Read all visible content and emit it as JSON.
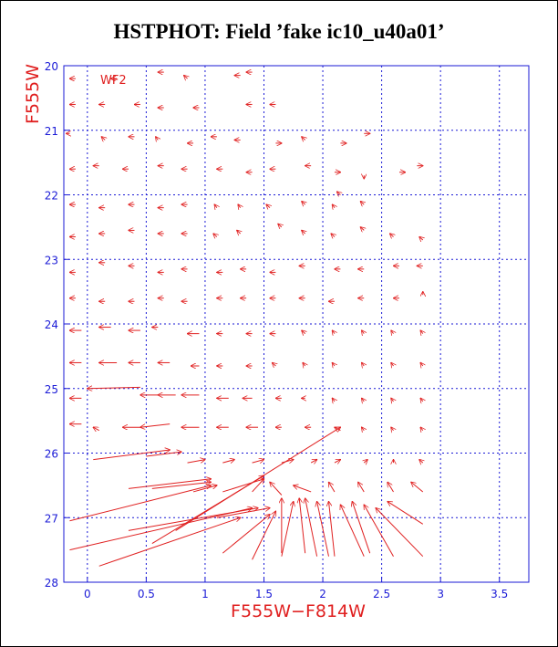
{
  "chart_data": {
    "type": "vector-field",
    "title": "HSTPHOT: Field ’fake ic10_u40a01’",
    "panel_label": "WF2",
    "xlabel": "F555W−F814W",
    "ylabel": "F555W",
    "xlim": [
      -0.2,
      3.75
    ],
    "ylim": [
      28,
      20
    ],
    "x_ticks": [
      0,
      0.5,
      1,
      1.5,
      2,
      2.5,
      3,
      3.5
    ],
    "x_tick_labels": [
      "0",
      "0.5",
      "1",
      "1.5",
      "2",
      "2.5",
      "3",
      "3.5"
    ],
    "y_ticks": [
      20,
      21,
      22,
      23,
      24,
      25,
      26,
      27,
      28
    ],
    "y_tick_labels": [
      "20",
      "21",
      "22",
      "23",
      "24",
      "25",
      "26",
      "27",
      "28"
    ],
    "grid": true,
    "arrow_color": "#e02020",
    "grid_color": "#1a1ad6",
    "vectors": [
      {
        "x0": -0.1,
        "y0": 20.2,
        "x1": -0.15,
        "y1": 20.2
      },
      {
        "x0": 0.25,
        "y0": 20.2,
        "x1": 0.2,
        "y1": 20.2
      },
      {
        "x0": 0.65,
        "y0": 20.1,
        "x1": 0.6,
        "y1": 20.1
      },
      {
        "x0": 0.85,
        "y0": 20.2,
        "x1": 0.82,
        "y1": 20.15
      },
      {
        "x0": 1.3,
        "y0": 20.15,
        "x1": 1.25,
        "y1": 20.15
      },
      {
        "x0": 1.4,
        "y0": 20.1,
        "x1": 1.35,
        "y1": 20.1
      },
      {
        "x0": -0.1,
        "y0": 20.6,
        "x1": -0.15,
        "y1": 20.6
      },
      {
        "x0": 0.15,
        "y0": 20.6,
        "x1": 0.1,
        "y1": 20.6
      },
      {
        "x0": 0.45,
        "y0": 20.6,
        "x1": 0.4,
        "y1": 20.6
      },
      {
        "x0": 0.65,
        "y0": 20.65,
        "x1": 0.6,
        "y1": 20.65
      },
      {
        "x0": 0.95,
        "y0": 20.65,
        "x1": 0.9,
        "y1": 20.65
      },
      {
        "x0": 1.4,
        "y0": 20.6,
        "x1": 1.35,
        "y1": 20.6
      },
      {
        "x0": 1.6,
        "y0": 20.6,
        "x1": 1.55,
        "y1": 20.6
      },
      {
        "x0": -0.15,
        "y0": 21.05,
        "x1": -0.18,
        "y1": 21.05
      },
      {
        "x0": 0.15,
        "y0": 21.15,
        "x1": 0.12,
        "y1": 21.1
      },
      {
        "x0": 0.4,
        "y0": 21.1,
        "x1": 0.35,
        "y1": 21.1
      },
      {
        "x0": 0.6,
        "y0": 21.15,
        "x1": 0.58,
        "y1": 21.1
      },
      {
        "x0": 0.9,
        "y0": 21.2,
        "x1": 0.85,
        "y1": 21.2
      },
      {
        "x0": 1.1,
        "y0": 21.1,
        "x1": 1.05,
        "y1": 21.1
      },
      {
        "x0": 1.3,
        "y0": 21.15,
        "x1": 1.25,
        "y1": 21.15
      },
      {
        "x0": 1.6,
        "y0": 21.2,
        "x1": 1.65,
        "y1": 21.2
      },
      {
        "x0": 1.85,
        "y0": 21.15,
        "x1": 1.82,
        "y1": 21.1
      },
      {
        "x0": 2.15,
        "y0": 21.2,
        "x1": 2.2,
        "y1": 21.2
      },
      {
        "x0": 2.35,
        "y0": 21.05,
        "x1": 2.4,
        "y1": 21.05
      },
      {
        "x0": -0.1,
        "y0": 21.6,
        "x1": -0.15,
        "y1": 21.6
      },
      {
        "x0": 0.1,
        "y0": 21.55,
        "x1": 0.05,
        "y1": 21.55
      },
      {
        "x0": 0.35,
        "y0": 21.6,
        "x1": 0.3,
        "y1": 21.6
      },
      {
        "x0": 0.65,
        "y0": 21.55,
        "x1": 0.6,
        "y1": 21.55
      },
      {
        "x0": 0.85,
        "y0": 21.6,
        "x1": 0.8,
        "y1": 21.6
      },
      {
        "x0": 1.15,
        "y0": 21.6,
        "x1": 1.1,
        "y1": 21.6
      },
      {
        "x0": 1.4,
        "y0": 21.65,
        "x1": 1.35,
        "y1": 21.65
      },
      {
        "x0": 1.6,
        "y0": 21.6,
        "x1": 1.55,
        "y1": 21.6
      },
      {
        "x0": 1.9,
        "y0": 21.55,
        "x1": 1.85,
        "y1": 21.55
      },
      {
        "x0": 2.1,
        "y0": 21.65,
        "x1": 2.15,
        "y1": 21.65
      },
      {
        "x0": 2.35,
        "y0": 21.7,
        "x1": 2.35,
        "y1": 21.75
      },
      {
        "x0": 2.65,
        "y0": 21.65,
        "x1": 2.7,
        "y1": 21.65
      },
      {
        "x0": 2.8,
        "y0": 21.55,
        "x1": 2.85,
        "y1": 21.55
      },
      {
        "x0": -0.1,
        "y0": 22.15,
        "x1": -0.15,
        "y1": 22.15
      },
      {
        "x0": 0.15,
        "y0": 22.2,
        "x1": 0.1,
        "y1": 22.2
      },
      {
        "x0": 0.4,
        "y0": 22.15,
        "x1": 0.35,
        "y1": 22.15
      },
      {
        "x0": 0.65,
        "y0": 22.2,
        "x1": 0.6,
        "y1": 22.2
      },
      {
        "x0": 0.85,
        "y0": 22.15,
        "x1": 0.8,
        "y1": 22.15
      },
      {
        "x0": 1.1,
        "y0": 22.2,
        "x1": 1.08,
        "y1": 22.15
      },
      {
        "x0": 1.3,
        "y0": 22.2,
        "x1": 1.28,
        "y1": 22.15
      },
      {
        "x0": 1.55,
        "y0": 22.2,
        "x1": 1.52,
        "y1": 22.15
      },
      {
        "x0": 1.85,
        "y0": 22.15,
        "x1": 1.82,
        "y1": 22.1
      },
      {
        "x0": 2.1,
        "y0": 22.2,
        "x1": 2.08,
        "y1": 22.15
      },
      {
        "x0": 2.35,
        "y0": 22.15,
        "x1": 2.32,
        "y1": 22.1
      },
      {
        "x0": 2.15,
        "y0": 22.0,
        "x1": 2.12,
        "y1": 21.95
      },
      {
        "x0": -0.1,
        "y0": 22.65,
        "x1": -0.15,
        "y1": 22.65
      },
      {
        "x0": 0.15,
        "y0": 22.6,
        "x1": 0.1,
        "y1": 22.6
      },
      {
        "x0": 0.4,
        "y0": 22.55,
        "x1": 0.35,
        "y1": 22.55
      },
      {
        "x0": 0.65,
        "y0": 22.6,
        "x1": 0.6,
        "y1": 22.6
      },
      {
        "x0": 0.85,
        "y0": 22.6,
        "x1": 0.8,
        "y1": 22.6
      },
      {
        "x0": 1.1,
        "y0": 22.65,
        "x1": 1.07,
        "y1": 22.6
      },
      {
        "x0": 1.3,
        "y0": 22.6,
        "x1": 1.27,
        "y1": 22.55
      },
      {
        "x0": 1.65,
        "y0": 22.5,
        "x1": 1.62,
        "y1": 22.45
      },
      {
        "x0": 1.85,
        "y0": 22.6,
        "x1": 1.82,
        "y1": 22.55
      },
      {
        "x0": 2.1,
        "y0": 22.65,
        "x1": 2.07,
        "y1": 22.6
      },
      {
        "x0": 2.35,
        "y0": 22.55,
        "x1": 2.32,
        "y1": 22.5
      },
      {
        "x0": 2.6,
        "y0": 22.65,
        "x1": 2.57,
        "y1": 22.6
      },
      {
        "x0": 2.85,
        "y0": 22.7,
        "x1": 2.82,
        "y1": 22.65
      },
      {
        "x0": -0.1,
        "y0": 23.2,
        "x1": -0.15,
        "y1": 23.2
      },
      {
        "x0": 0.15,
        "y0": 23.05,
        "x1": 0.1,
        "y1": 23.05
      },
      {
        "x0": 0.4,
        "y0": 23.1,
        "x1": 0.35,
        "y1": 23.1
      },
      {
        "x0": 0.65,
        "y0": 23.2,
        "x1": 0.6,
        "y1": 23.2
      },
      {
        "x0": 0.85,
        "y0": 23.15,
        "x1": 0.8,
        "y1": 23.15
      },
      {
        "x0": 1.15,
        "y0": 23.2,
        "x1": 1.1,
        "y1": 23.2
      },
      {
        "x0": 1.35,
        "y0": 23.15,
        "x1": 1.3,
        "y1": 23.15
      },
      {
        "x0": 1.6,
        "y0": 23.2,
        "x1": 1.55,
        "y1": 23.2
      },
      {
        "x0": 1.85,
        "y0": 23.1,
        "x1": 1.8,
        "y1": 23.1
      },
      {
        "x0": 2.15,
        "y0": 23.15,
        "x1": 2.1,
        "y1": 23.15
      },
      {
        "x0": 2.35,
        "y0": 23.15,
        "x1": 2.3,
        "y1": 23.15
      },
      {
        "x0": 2.65,
        "y0": 23.1,
        "x1": 2.6,
        "y1": 23.1
      },
      {
        "x0": 2.85,
        "y0": 23.1,
        "x1": 2.8,
        "y1": 23.1
      },
      {
        "x0": -0.1,
        "y0": 23.6,
        "x1": -0.15,
        "y1": 23.6
      },
      {
        "x0": 0.15,
        "y0": 23.65,
        "x1": 0.1,
        "y1": 23.65
      },
      {
        "x0": 0.4,
        "y0": 23.65,
        "x1": 0.35,
        "y1": 23.65
      },
      {
        "x0": 0.65,
        "y0": 23.6,
        "x1": 0.6,
        "y1": 23.6
      },
      {
        "x0": 0.85,
        "y0": 23.65,
        "x1": 0.8,
        "y1": 23.65
      },
      {
        "x0": 1.15,
        "y0": 23.6,
        "x1": 1.1,
        "y1": 23.6
      },
      {
        "x0": 1.35,
        "y0": 23.6,
        "x1": 1.3,
        "y1": 23.6
      },
      {
        "x0": 1.6,
        "y0": 23.6,
        "x1": 1.55,
        "y1": 23.6
      },
      {
        "x0": 1.85,
        "y0": 23.6,
        "x1": 1.8,
        "y1": 23.6
      },
      {
        "x0": 2.1,
        "y0": 23.65,
        "x1": 2.05,
        "y1": 23.65
      },
      {
        "x0": 2.35,
        "y0": 23.6,
        "x1": 2.3,
        "y1": 23.6
      },
      {
        "x0": 2.65,
        "y0": 23.6,
        "x1": 2.6,
        "y1": 23.6
      },
      {
        "x0": 2.85,
        "y0": 23.55,
        "x1": 2.85,
        "y1": 23.5
      },
      {
        "x0": -0.05,
        "y0": 24.1,
        "x1": -0.15,
        "y1": 24.1
      },
      {
        "x0": 0.2,
        "y0": 24.05,
        "x1": 0.1,
        "y1": 24.05
      },
      {
        "x0": 0.45,
        "y0": 24.1,
        "x1": 0.35,
        "y1": 24.1
      },
      {
        "x0": 0.6,
        "y0": 24.05,
        "x1": 0.55,
        "y1": 24.05
      },
      {
        "x0": 0.95,
        "y0": 24.15,
        "x1": 0.85,
        "y1": 24.15
      },
      {
        "x0": 1.15,
        "y0": 24.15,
        "x1": 1.1,
        "y1": 24.15
      },
      {
        "x0": 1.4,
        "y0": 24.15,
        "x1": 1.35,
        "y1": 24.15
      },
      {
        "x0": 1.6,
        "y0": 24.15,
        "x1": 1.55,
        "y1": 24.15
      },
      {
        "x0": 1.85,
        "y0": 24.15,
        "x1": 1.82,
        "y1": 24.1
      },
      {
        "x0": 2.1,
        "y0": 24.15,
        "x1": 2.08,
        "y1": 24.1
      },
      {
        "x0": 2.35,
        "y0": 24.15,
        "x1": 2.33,
        "y1": 24.1
      },
      {
        "x0": 2.6,
        "y0": 24.15,
        "x1": 2.58,
        "y1": 24.1
      },
      {
        "x0": 2.85,
        "y0": 24.15,
        "x1": 2.83,
        "y1": 24.1
      },
      {
        "x0": -0.05,
        "y0": 24.6,
        "x1": -0.15,
        "y1": 24.6
      },
      {
        "x0": 0.25,
        "y0": 24.6,
        "x1": 0.1,
        "y1": 24.6
      },
      {
        "x0": 0.45,
        "y0": 24.6,
        "x1": 0.35,
        "y1": 24.6
      },
      {
        "x0": 0.7,
        "y0": 24.6,
        "x1": 0.6,
        "y1": 24.6
      },
      {
        "x0": 0.95,
        "y0": 24.65,
        "x1": 0.88,
        "y1": 24.65
      },
      {
        "x0": 1.15,
        "y0": 24.65,
        "x1": 1.1,
        "y1": 24.65
      },
      {
        "x0": 1.4,
        "y0": 24.65,
        "x1": 1.35,
        "y1": 24.65
      },
      {
        "x0": 1.6,
        "y0": 24.65,
        "x1": 1.57,
        "y1": 24.6
      },
      {
        "x0": 1.85,
        "y0": 24.65,
        "x1": 1.83,
        "y1": 24.6
      },
      {
        "x0": 2.1,
        "y0": 24.65,
        "x1": 2.08,
        "y1": 24.6
      },
      {
        "x0": 2.35,
        "y0": 24.65,
        "x1": 2.33,
        "y1": 24.6
      },
      {
        "x0": 2.6,
        "y0": 24.65,
        "x1": 2.58,
        "y1": 24.6
      },
      {
        "x0": 2.85,
        "y0": 24.65,
        "x1": 2.83,
        "y1": 24.6
      },
      {
        "x0": -0.05,
        "y0": 25.15,
        "x1": -0.15,
        "y1": 25.15
      },
      {
        "x0": 0.45,
        "y0": 24.98,
        "x1": 0.0,
        "y1": 25.0
      },
      {
        "x0": 0.6,
        "y0": 25.1,
        "x1": 0.45,
        "y1": 25.1
      },
      {
        "x0": 0.75,
        "y0": 25.1,
        "x1": 0.6,
        "y1": 25.1
      },
      {
        "x0": 0.95,
        "y0": 25.1,
        "x1": 0.8,
        "y1": 25.1
      },
      {
        "x0": 1.2,
        "y0": 25.15,
        "x1": 1.1,
        "y1": 25.15
      },
      {
        "x0": 1.4,
        "y0": 25.15,
        "x1": 1.32,
        "y1": 25.15
      },
      {
        "x0": 1.65,
        "y0": 25.15,
        "x1": 1.6,
        "y1": 25.15
      },
      {
        "x0": 1.85,
        "y0": 25.15,
        "x1": 1.82,
        "y1": 25.15
      },
      {
        "x0": 2.1,
        "y0": 25.2,
        "x1": 2.08,
        "y1": 25.15
      },
      {
        "x0": 2.35,
        "y0": 25.2,
        "x1": 2.33,
        "y1": 25.15
      },
      {
        "x0": 2.6,
        "y0": 25.2,
        "x1": 2.58,
        "y1": 25.15
      },
      {
        "x0": 2.85,
        "y0": 25.2,
        "x1": 2.83,
        "y1": 25.15
      },
      {
        "x0": -0.05,
        "y0": 25.55,
        "x1": -0.15,
        "y1": 25.55
      },
      {
        "x0": 0.1,
        "y0": 25.65,
        "x1": 0.05,
        "y1": 25.6
      },
      {
        "x0": 0.45,
        "y0": 25.6,
        "x1": 0.3,
        "y1": 25.6
      },
      {
        "x0": 0.7,
        "y0": 25.55,
        "x1": 0.45,
        "y1": 25.6
      },
      {
        "x0": 0.95,
        "y0": 25.6,
        "x1": 0.8,
        "y1": 25.6
      },
      {
        "x0": 1.2,
        "y0": 25.6,
        "x1": 1.1,
        "y1": 25.6
      },
      {
        "x0": 1.45,
        "y0": 25.6,
        "x1": 1.35,
        "y1": 25.6
      },
      {
        "x0": 1.65,
        "y0": 25.6,
        "x1": 1.6,
        "y1": 25.6
      },
      {
        "x0": 1.9,
        "y0": 25.6,
        "x1": 1.85,
        "y1": 25.6
      },
      {
        "x0": 2.15,
        "y0": 25.65,
        "x1": 2.1,
        "y1": 25.6
      },
      {
        "x0": 2.35,
        "y0": 25.65,
        "x1": 2.33,
        "y1": 25.6
      },
      {
        "x0": 2.6,
        "y0": 25.65,
        "x1": 2.58,
        "y1": 25.6
      },
      {
        "x0": 2.85,
        "y0": 25.65,
        "x1": 2.83,
        "y1": 25.6
      },
      {
        "x0": 0.05,
        "y0": 26.1,
        "x1": 0.7,
        "y1": 25.95
      },
      {
        "x0": 0.5,
        "y0": 26.05,
        "x1": 0.8,
        "y1": 25.98
      },
      {
        "x0": 0.85,
        "y0": 26.15,
        "x1": 1.0,
        "y1": 26.1
      },
      {
        "x0": 1.15,
        "y0": 26.15,
        "x1": 1.25,
        "y1": 26.1
      },
      {
        "x0": 1.4,
        "y0": 26.15,
        "x1": 1.5,
        "y1": 26.1
      },
      {
        "x0": 1.65,
        "y0": 26.15,
        "x1": 1.75,
        "y1": 26.1
      },
      {
        "x0": 1.9,
        "y0": 26.15,
        "x1": 1.95,
        "y1": 26.1
      },
      {
        "x0": 2.1,
        "y0": 26.15,
        "x1": 2.15,
        "y1": 26.1
      },
      {
        "x0": 2.35,
        "y0": 26.15,
        "x1": 2.38,
        "y1": 26.1
      },
      {
        "x0": 2.6,
        "y0": 26.15,
        "x1": 2.6,
        "y1": 26.1
      },
      {
        "x0": 2.85,
        "y0": 26.15,
        "x1": 2.82,
        "y1": 26.1
      },
      {
        "x0": 0.35,
        "y0": 26.55,
        "x1": 1.05,
        "y1": 26.4
      },
      {
        "x0": 0.55,
        "y0": 26.55,
        "x1": 1.05,
        "y1": 26.45
      },
      {
        "x0": 0.9,
        "y0": 26.6,
        "x1": 1.1,
        "y1": 26.5
      },
      {
        "x0": 1.15,
        "y0": 26.6,
        "x1": 1.5,
        "y1": 26.4
      },
      {
        "x0": 1.4,
        "y0": 26.6,
        "x1": 1.5,
        "y1": 26.4
      },
      {
        "x0": 1.65,
        "y0": 26.65,
        "x1": 1.55,
        "y1": 26.45
      },
      {
        "x0": 1.9,
        "y0": 26.6,
        "x1": 1.75,
        "y1": 26.5
      },
      {
        "x0": 2.1,
        "y0": 26.6,
        "x1": 2.05,
        "y1": 26.45
      },
      {
        "x0": 2.35,
        "y0": 26.6,
        "x1": 2.3,
        "y1": 26.45
      },
      {
        "x0": 2.6,
        "y0": 26.6,
        "x1": 2.55,
        "y1": 26.45
      },
      {
        "x0": 2.85,
        "y0": 26.6,
        "x1": 2.75,
        "y1": 26.45
      },
      {
        "x0": -0.15,
        "y0": 27.05,
        "x1": 1.05,
        "y1": 26.5
      },
      {
        "x0": -0.15,
        "y0": 27.5,
        "x1": 1.4,
        "y1": 26.85
      },
      {
        "x0": 0.1,
        "y0": 27.75,
        "x1": 1.3,
        "y1": 27.0
      },
      {
        "x0": 0.35,
        "y0": 27.2,
        "x1": 1.45,
        "y1": 26.85
      },
      {
        "x0": 0.55,
        "y0": 27.4,
        "x1": 1.5,
        "y1": 26.35
      },
      {
        "x0": 0.75,
        "y0": 27.2,
        "x1": 2.15,
        "y1": 25.6
      },
      {
        "x0": 1.1,
        "y0": 27.0,
        "x1": 1.55,
        "y1": 26.85
      },
      {
        "x0": 1.15,
        "y0": 27.55,
        "x1": 1.55,
        "y1": 26.95
      },
      {
        "x0": 1.4,
        "y0": 27.65,
        "x1": 1.6,
        "y1": 26.9
      },
      {
        "x0": 1.65,
        "y0": 27.55,
        "x1": 1.65,
        "y1": 26.7
      },
      {
        "x0": 1.65,
        "y0": 27.6,
        "x1": 1.75,
        "y1": 26.75
      },
      {
        "x0": 1.85,
        "y0": 27.55,
        "x1": 1.8,
        "y1": 26.7
      },
      {
        "x0": 1.95,
        "y0": 27.6,
        "x1": 1.85,
        "y1": 26.7
      },
      {
        "x0": 2.05,
        "y0": 27.6,
        "x1": 1.95,
        "y1": 26.75
      },
      {
        "x0": 2.1,
        "y0": 27.6,
        "x1": 2.05,
        "y1": 26.75
      },
      {
        "x0": 2.35,
        "y0": 27.6,
        "x1": 2.15,
        "y1": 26.8
      },
      {
        "x0": 2.4,
        "y0": 27.55,
        "x1": 2.25,
        "y1": 26.75
      },
      {
        "x0": 2.6,
        "y0": 27.6,
        "x1": 2.35,
        "y1": 26.8
      },
      {
        "x0": 2.85,
        "y0": 27.6,
        "x1": 2.45,
        "y1": 26.85
      },
      {
        "x0": 2.85,
        "y0": 27.1,
        "x1": 2.55,
        "y1": 26.75
      }
    ]
  }
}
